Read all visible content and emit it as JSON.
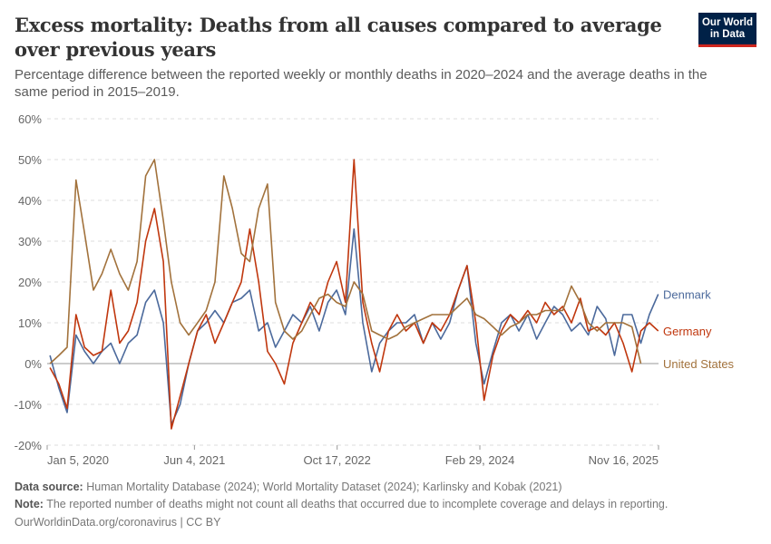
{
  "header": {
    "title": "Excess mortality: Deaths from all causes compared to average over previous years",
    "subtitle": "Percentage difference between the reported weekly or monthly deaths in 2020–2024 and the average deaths in the same period in 2015–2019.",
    "logo_text": "Our World in Data"
  },
  "footer": {
    "source_label": "Data source:",
    "source": "Human Mortality Database (2024); World Mortality Dataset (2024); Karlinsky and Kobak (2021)",
    "note_label": "Note:",
    "note": "The reported number of deaths might not count all deaths that occurred due to incomplete coverage and delays in reporting.",
    "url": "OurWorldinData.org/coronavirus | CC BY"
  },
  "chart_data": {
    "type": "line",
    "ylim": [
      -20,
      60
    ],
    "y_ticks": [
      -20,
      -10,
      0,
      10,
      20,
      30,
      40,
      50,
      60
    ],
    "y_tick_labels": [
      "-20%",
      "-10%",
      "0%",
      "10%",
      "20%",
      "30%",
      "40%",
      "50%",
      "60%"
    ],
    "x_range": [
      "2020-01-05",
      "2025-11-16"
    ],
    "x_ticks": [
      "2020-01-05",
      "2021-06-04",
      "2022-10-17",
      "2024-02-29",
      "2025-11-16"
    ],
    "x_tick_labels": [
      "Jan 5, 2020",
      "Jun 4, 2021",
      "Oct 17, 2022",
      "Feb 29, 2024",
      "Nov 16, 2025"
    ],
    "grid": "horizontal dashed",
    "legend": "right, inline labels",
    "x": [
      "2020-01",
      "2020-02",
      "2020-03",
      "2020-04",
      "2020-05",
      "2020-06",
      "2020-07",
      "2020-08",
      "2020-09",
      "2020-10",
      "2020-11",
      "2020-12",
      "2021-01",
      "2021-02",
      "2021-03",
      "2021-04",
      "2021-05",
      "2021-06",
      "2021-07",
      "2021-08",
      "2021-09",
      "2021-10",
      "2021-11",
      "2021-12",
      "2022-01",
      "2022-02",
      "2022-03",
      "2022-04",
      "2022-05",
      "2022-06",
      "2022-07",
      "2022-08",
      "2022-09",
      "2022-10",
      "2022-11",
      "2022-12",
      "2023-01",
      "2023-02",
      "2023-03",
      "2023-04",
      "2023-05",
      "2023-06",
      "2023-07",
      "2023-08",
      "2023-09",
      "2023-10",
      "2023-11",
      "2023-12",
      "2024-01",
      "2024-02",
      "2024-03",
      "2024-04",
      "2024-05",
      "2024-06",
      "2024-07",
      "2024-08",
      "2024-09",
      "2024-10",
      "2024-11",
      "2024-12",
      "2025-01",
      "2025-02",
      "2025-03",
      "2025-04",
      "2025-05",
      "2025-06",
      "2025-07",
      "2025-08",
      "2025-09",
      "2025-10",
      "2025-11"
    ],
    "series": [
      {
        "name": "Denmark",
        "color": "#4c6a9c",
        "values": [
          2,
          -6,
          -12,
          7,
          3,
          0,
          3,
          5,
          0,
          5,
          7,
          15,
          18,
          10,
          -15,
          -10,
          0,
          8,
          10,
          13,
          10,
          15,
          16,
          18,
          8,
          10,
          4,
          8,
          12,
          10,
          14,
          8,
          15,
          18,
          12,
          33,
          10,
          -2,
          5,
          8,
          10,
          10,
          12,
          5,
          10,
          6,
          10,
          18,
          24,
          5,
          -5,
          3,
          10,
          12,
          8,
          12,
          6,
          10,
          14,
          12,
          8,
          10,
          7,
          14,
          11,
          2,
          12,
          12,
          5,
          12,
          17
        ]
      },
      {
        "name": "Germany",
        "color": "#c0370e",
        "values": [
          -1,
          -5,
          -11,
          12,
          4,
          2,
          3,
          18,
          5,
          8,
          15,
          30,
          38,
          25,
          -16,
          -8,
          0,
          8,
          12,
          5,
          10,
          15,
          20,
          33,
          20,
          3,
          0,
          -5,
          5,
          10,
          15,
          12,
          20,
          25,
          15,
          50,
          15,
          5,
          -2,
          8,
          12,
          8,
          10,
          5,
          10,
          8,
          12,
          18,
          24,
          10,
          -9,
          2,
          8,
          12,
          10,
          13,
          10,
          15,
          12,
          14,
          10,
          16,
          8,
          9,
          7,
          10,
          5,
          -2,
          8,
          10,
          8
        ]
      },
      {
        "name": "United States",
        "color": "#a2723c",
        "values": [
          0,
          2,
          4,
          45,
          32,
          18,
          22,
          28,
          22,
          18,
          25,
          46,
          50,
          35,
          20,
          10,
          7,
          10,
          13,
          20,
          46,
          38,
          27,
          25,
          38,
          44,
          15,
          8,
          6,
          8,
          12,
          16,
          17,
          15,
          14,
          20,
          17,
          8,
          7,
          6,
          7,
          9,
          10,
          11,
          12,
          12,
          12,
          14,
          16,
          12,
          11,
          9,
          7,
          9,
          10,
          12,
          12,
          13,
          13,
          13,
          19,
          15,
          10,
          8,
          10,
          10,
          10,
          9,
          0,
          null,
          null
        ]
      }
    ]
  }
}
